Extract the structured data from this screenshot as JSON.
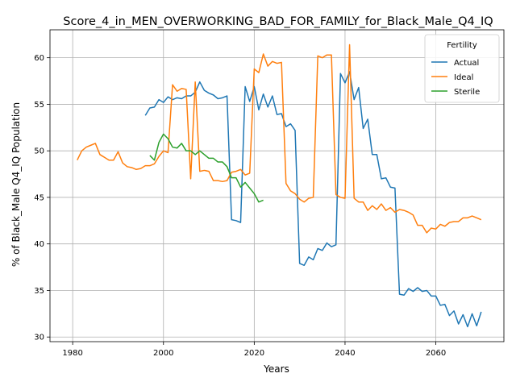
{
  "chart_data": {
    "type": "line",
    "title": "Score_4_in_MEN_OVERWORKING_BAD_FOR_FAMILY_for_Black_Male_Q4_IQ",
    "xlabel": "Years",
    "ylabel": "% of Black_Male Q4_IQ Population",
    "xlim": [
      1975,
      2075
    ],
    "ylim": [
      29.5,
      63
    ],
    "xticks": [
      1980,
      2000,
      2020,
      2040,
      2060
    ],
    "yticks": [
      30,
      35,
      40,
      45,
      50,
      55,
      60
    ],
    "grid": true,
    "legend": {
      "title": "Fertility",
      "position": "top-right"
    },
    "series": [
      {
        "name": "Actual",
        "color": "#1f77b4",
        "x": [
          1996,
          1997,
          1998,
          1999,
          2000,
          2001,
          2002,
          2003,
          2004,
          2005,
          2006,
          2007,
          2008,
          2009,
          2010,
          2011,
          2012,
          2013,
          2014,
          2015,
          2016,
          2017,
          2018,
          2019,
          2020,
          2021,
          2022,
          2023,
          2024,
          2025,
          2026,
          2027,
          2028,
          2029,
          2030,
          2031,
          2032,
          2033,
          2034,
          2035,
          2036,
          2037,
          2038,
          2039,
          2040,
          2041,
          2042,
          2043,
          2044,
          2045,
          2046,
          2047,
          2048,
          2049,
          2050,
          2051,
          2052,
          2053,
          2054,
          2055,
          2056,
          2057,
          2058,
          2059,
          2060,
          2061,
          2062,
          2063,
          2064,
          2065,
          2066,
          2067,
          2068,
          2069,
          2070
        ],
        "y": [
          53.8,
          54.6,
          54.7,
          55.5,
          55.2,
          55.8,
          55.5,
          55.7,
          55.6,
          55.9,
          55.9,
          56.3,
          57.4,
          56.5,
          56.2,
          56.0,
          55.6,
          55.7,
          55.9,
          42.6,
          42.5,
          42.3,
          56.9,
          55.3,
          56.9,
          54.4,
          56.1,
          54.7,
          55.9,
          53.9,
          54.0,
          52.6,
          52.9,
          52.2,
          37.9,
          37.7,
          38.6,
          38.3,
          39.5,
          39.3,
          40.1,
          39.7,
          39.9,
          58.3,
          57.3,
          58.5,
          55.5,
          56.8,
          52.4,
          53.4,
          49.6,
          49.6,
          47.0,
          47.1,
          46.1,
          46.0,
          34.6,
          34.5,
          35.2,
          34.9,
          35.3,
          34.9,
          35.0,
          34.4,
          34.4,
          33.4,
          33.5,
          32.3,
          32.8,
          31.4,
          32.4,
          31.1,
          32.5,
          31.2,
          32.7
        ]
      },
      {
        "name": "Ideal",
        "color": "#ff7f0e",
        "x": [
          1981,
          1982,
          1983,
          1984,
          1985,
          1986,
          1987,
          1988,
          1989,
          1990,
          1991,
          1992,
          1993,
          1994,
          1995,
          1996,
          1997,
          1998,
          1999,
          2000,
          2001,
          2002,
          2003,
          2004,
          2005,
          2006,
          2007,
          2008,
          2009,
          2010,
          2011,
          2012,
          2013,
          2014,
          2015,
          2016,
          2017,
          2018,
          2019,
          2020,
          2021,
          2022,
          2023,
          2024,
          2025,
          2026,
          2027,
          2028,
          2029,
          2030,
          2031,
          2032,
          2033,
          2034,
          2035,
          2036,
          2037,
          2038,
          2039,
          2040,
          2041,
          2042,
          2043,
          2044,
          2045,
          2046,
          2047,
          2048,
          2049,
          2050,
          2051,
          2052,
          2053,
          2054,
          2055,
          2056,
          2057,
          2058,
          2059,
          2060,
          2061,
          2062,
          2063,
          2064,
          2065,
          2066,
          2067,
          2068,
          2069,
          2070
        ],
        "y": [
          49.0,
          50.0,
          50.4,
          50.6,
          50.8,
          49.6,
          49.3,
          49.0,
          49.0,
          49.9,
          48.7,
          48.3,
          48.2,
          48.0,
          48.1,
          48.4,
          48.4,
          48.6,
          49.4,
          50.0,
          49.8,
          57.1,
          56.4,
          56.7,
          56.6,
          47.0,
          57.4,
          47.8,
          47.9,
          47.8,
          46.8,
          46.8,
          46.7,
          46.8,
          47.7,
          47.8,
          48.0,
          47.4,
          47.6,
          58.8,
          58.4,
          60.4,
          59.1,
          59.6,
          59.4,
          59.5,
          46.5,
          45.7,
          45.4,
          44.8,
          44.5,
          44.9,
          45.0,
          60.2,
          60.0,
          60.3,
          60.3,
          45.3,
          45.0,
          44.9,
          61.4,
          44.9,
          44.5,
          44.5,
          43.6,
          44.1,
          43.7,
          44.3,
          43.6,
          43.9,
          43.4,
          43.7,
          43.6,
          43.4,
          43.1,
          42.0,
          42.0,
          41.2,
          41.7,
          41.6,
          42.1,
          41.9,
          42.3,
          42.4,
          42.4,
          42.8,
          42.8,
          43.0,
          42.8,
          42.6
        ]
      },
      {
        "name": "Sterile",
        "color": "#2ca02c",
        "x": [
          1997,
          1998,
          1999,
          2000,
          2001,
          2002,
          2003,
          2004,
          2005,
          2006,
          2007,
          2008,
          2009,
          2010,
          2011,
          2012,
          2013,
          2014,
          2015,
          2016,
          2017,
          2018,
          2019,
          2020,
          2021,
          2022
        ],
        "y": [
          49.5,
          49.0,
          50.9,
          51.8,
          51.3,
          50.4,
          50.3,
          50.8,
          50.0,
          50.0,
          49.6,
          50.0,
          49.6,
          49.2,
          49.2,
          48.8,
          48.8,
          48.3,
          47.1,
          47.1,
          46.1,
          46.6,
          46.0,
          45.4,
          44.5,
          44.7
        ]
      }
    ]
  }
}
